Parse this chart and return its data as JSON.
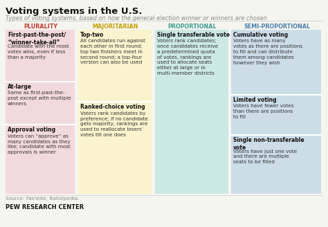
{
  "title": "Voting systems in the U.S.",
  "subtitle": "Types of voting systems, based on how the general election winner or winners are chosen",
  "source": "Source: FairVote, Ballotpedia.",
  "footer": "PEW RESEARCH CENTER",
  "bg_color": "#f5f5f0",
  "columns": [
    {
      "header": "PLURALITY",
      "header_color": "#c0392b",
      "bg_color": "#f2d9dd",
      "cells": [
        {
          "bold": "First-past-the-post/\n“winner-take-all”",
          "text": "Candidate with the most\nvotes wins, even if less\nthan a majority"
        },
        {
          "bold": "At-large",
          "text": "Same as first-past-the-\npost except with multiple\nwinners"
        },
        {
          "bold": "Approval voting",
          "text": "Voters can “approve” as\nmany candidates as they\nlike; candidate with most\napprovals is winner"
        }
      ]
    },
    {
      "header": "MAJORITARIAN",
      "header_color": "#c8a000",
      "bg_color": "#faf3ce",
      "cells": [
        {
          "bold": "Top-two",
          "text": "All candidates run against\neach other in first round;\ntop two finishers meet in\nsecond round; a top-four\nversion can also be used"
        },
        {
          "bold": "Ranked-choice voting",
          "text": "Voters rank candidates by\npreference; if no candidate\ngets majority, rankings are\nused to reallocate losers’\nvotes till one does"
        }
      ]
    },
    {
      "header": "PROPORTIONAL",
      "header_color": "#3a9e8f",
      "bg_color": "#cce8e3",
      "cells": [
        {
          "bold": "Single transferable vote",
          "text": "Voters rank candidates;\nonce candidates receive\na predetermined quota\nof votes, rankings are\nused to allocate seats\neither at large or in\nmulti-member districts"
        }
      ]
    },
    {
      "header": "SEMI-PROPORTIONAL",
      "header_color": "#4a7faa",
      "bg_color": "#ccdde8",
      "cells": [
        {
          "bold": "Cumulative voting",
          "text": "Voters have as many\nvotes as there are positions\nto fill and can distribute\nthem among candidates\nhowever they wish"
        },
        {
          "bold": "Limited voting",
          "text": "Voters have fewer votes\nthan there are positions\nto fill"
        },
        {
          "bold": "Single non-transferable\nvote",
          "text": "Voters have just one vote\nand there are multiple\nseats to be filled"
        }
      ]
    }
  ]
}
